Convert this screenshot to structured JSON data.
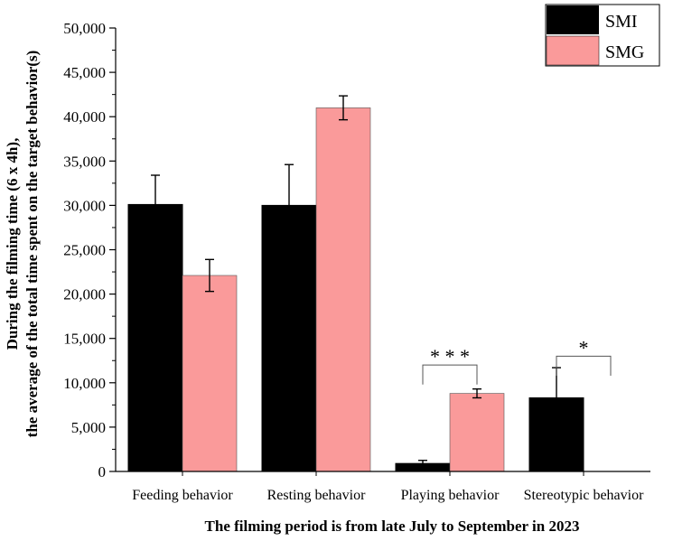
{
  "chart_data": {
    "type": "bar",
    "categories": [
      "Feeding behavior",
      "Resting behavior",
      "Playing behavior",
      "Stereotypic behavior"
    ],
    "series": [
      {
        "name": "SMI",
        "color": "#000000",
        "values": [
          30100,
          30000,
          900,
          8300
        ],
        "errors": [
          3300,
          4600,
          350,
          3400
        ]
      },
      {
        "name": "SMG",
        "color": "#fa9a9a",
        "values": [
          22100,
          41000,
          8800,
          0
        ],
        "errors": [
          1800,
          1350,
          500,
          0
        ]
      }
    ],
    "ylim": [
      0,
      50000
    ],
    "yticks": [
      0,
      5000,
      10000,
      15000,
      20000,
      25000,
      30000,
      35000,
      40000,
      45000,
      50000
    ],
    "ytick_labels": [
      "0",
      "5,000",
      "10,000",
      "15,000",
      "20,000",
      "25,000",
      "30,000",
      "35,000",
      "40,000",
      "45,000",
      "50,000"
    ],
    "ylabel_line1": "During the filming time (6 x 4h),",
    "ylabel_line2": "the average of the total time spent on the target behavior(s)",
    "xlabel": "The filming period is from late July to September in 2023",
    "legend_position": "top-right",
    "annotations": [
      {
        "category_index": 2,
        "text": "* * *",
        "bracket_top": 12000,
        "bracket_bottom": 9800
      },
      {
        "category_index": 3,
        "text": "*",
        "bracket_top": 13000,
        "bracket_bottom": 10800
      }
    ]
  }
}
